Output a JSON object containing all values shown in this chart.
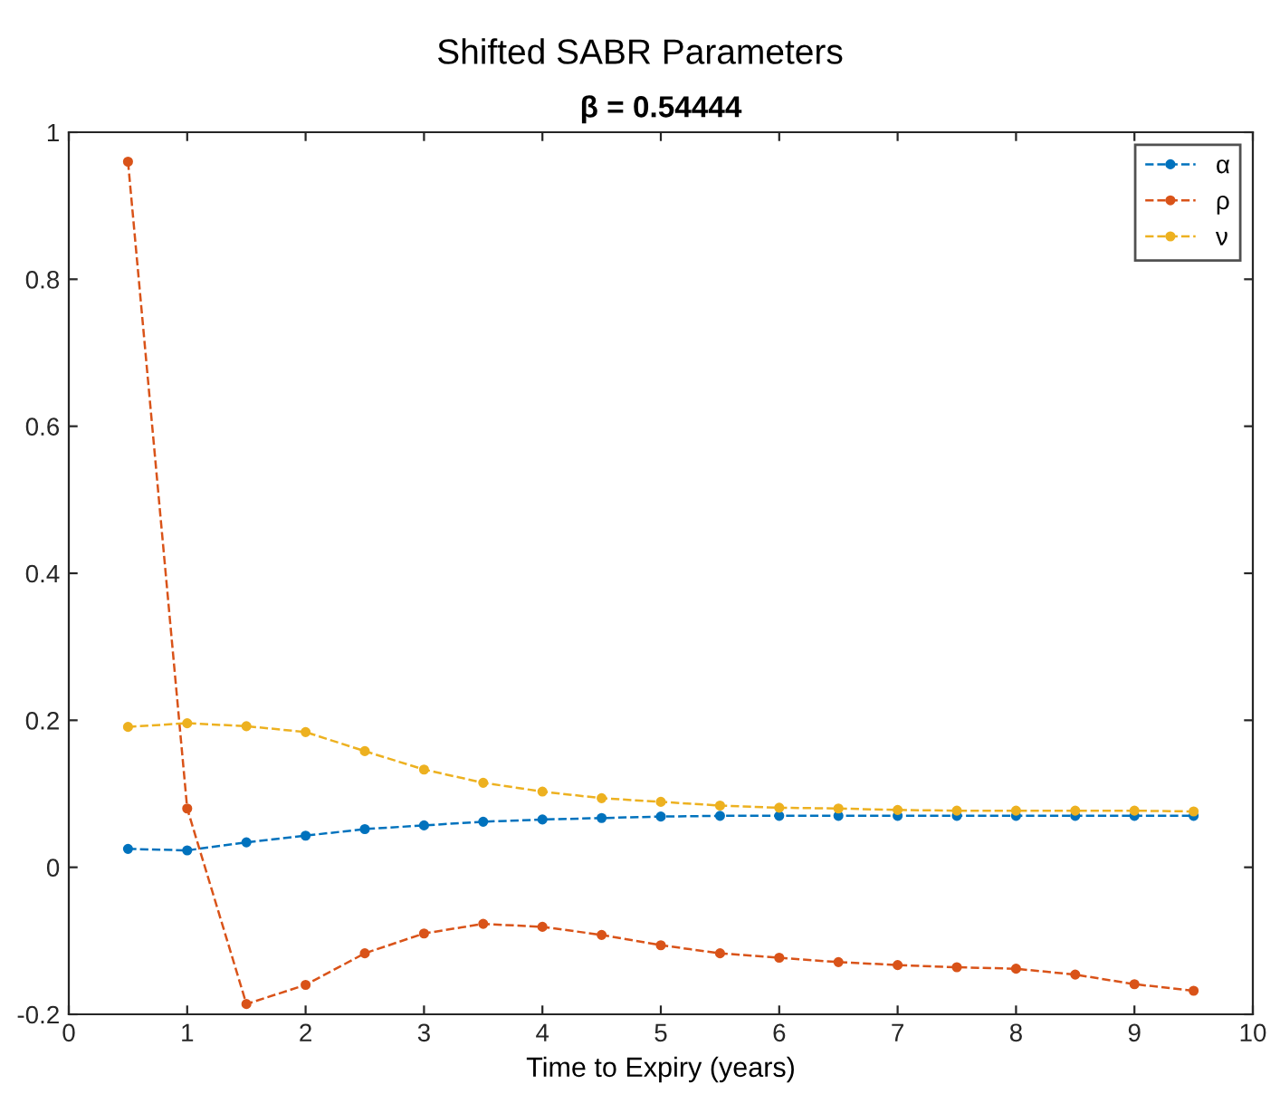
{
  "chart_data": {
    "type": "line",
    "title": "Shifted SABR Parameters",
    "subtitle": "β = 0.54444",
    "xlabel": "Time to Expiry (years)",
    "x": [
      0.5,
      1,
      1.5,
      2,
      2.5,
      3,
      3.5,
      4,
      4.5,
      5,
      5.5,
      6,
      6.5,
      7,
      7.5,
      8,
      8.5,
      9,
      9.5
    ],
    "series": [
      {
        "name": "α",
        "color": "#0072bd",
        "values": [
          0.025,
          0.023,
          0.034,
          0.043,
          0.052,
          0.057,
          0.062,
          0.065,
          0.067,
          0.069,
          0.07,
          0.07,
          0.07,
          0.07,
          0.07,
          0.07,
          0.07,
          0.07,
          0.07
        ]
      },
      {
        "name": "ρ",
        "color": "#d95319",
        "values": [
          0.96,
          0.08,
          -0.186,
          -0.16,
          -0.117,
          -0.09,
          -0.077,
          -0.081,
          -0.092,
          -0.106,
          -0.117,
          -0.123,
          -0.129,
          -0.133,
          -0.136,
          -0.138,
          -0.146,
          -0.159,
          -0.168
        ]
      },
      {
        "name": "ν",
        "color": "#edb120",
        "values": [
          0.191,
          0.196,
          0.192,
          0.184,
          0.158,
          0.133,
          0.115,
          0.103,
          0.094,
          0.089,
          0.084,
          0.081,
          0.08,
          0.078,
          0.077,
          0.077,
          0.077,
          0.077,
          0.076
        ]
      }
    ],
    "xlim": [
      0,
      10
    ],
    "xticks": [
      0,
      1,
      2,
      3,
      4,
      5,
      6,
      7,
      8,
      9,
      10
    ],
    "ylim": [
      -0.2,
      1
    ],
    "yticks": [
      -0.2,
      0,
      0.2,
      0.4,
      0.6,
      0.8,
      1
    ],
    "grid": false,
    "legend": "top right",
    "marker": "circle",
    "line_style": "dashed"
  }
}
